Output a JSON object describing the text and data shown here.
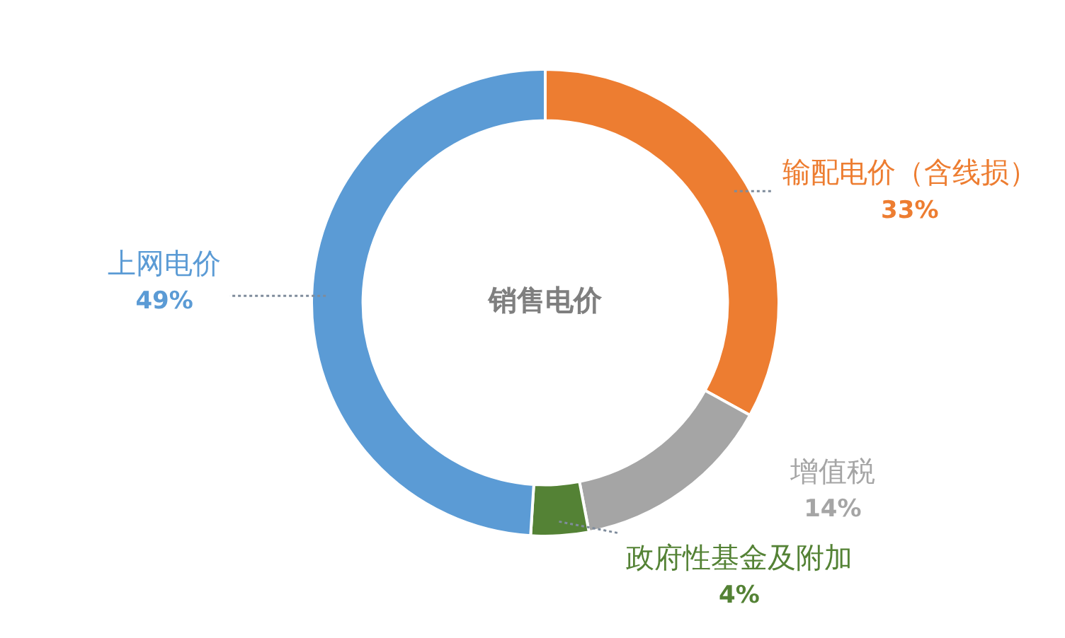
{
  "chart_data": {
    "type": "donut",
    "title": "销售电价",
    "categories": [
      "输配电价（含线损）",
      "增值税",
      "政府性基金及附加",
      "上网电价"
    ],
    "values": [
      33,
      14,
      4,
      49
    ],
    "value_labels": [
      "33%",
      "14%",
      "4%",
      "49%"
    ],
    "colors": [
      "#ed7d31",
      "#a5a5a5",
      "#548235",
      "#5b9bd5"
    ],
    "legend": false
  }
}
